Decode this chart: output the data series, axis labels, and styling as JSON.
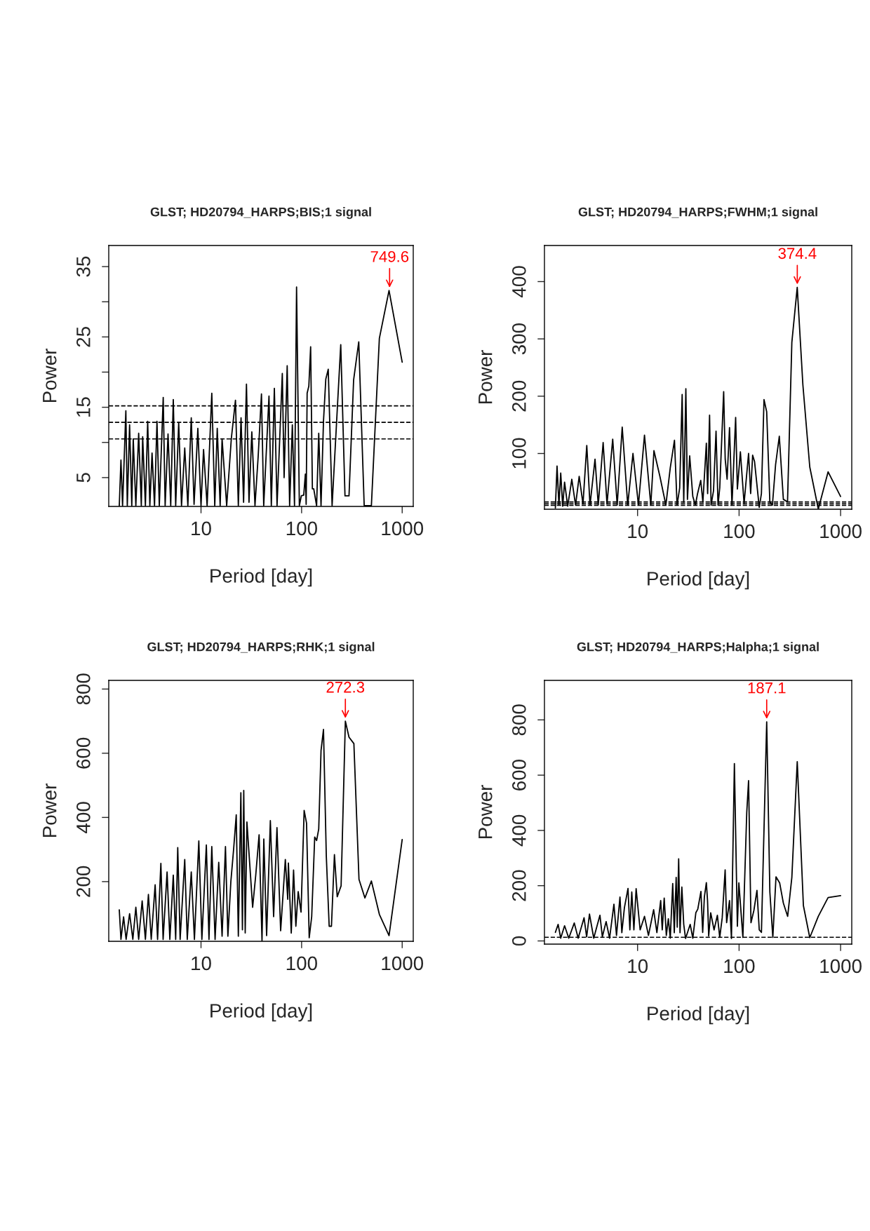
{
  "chart_data": [
    {
      "type": "line",
      "title": "GLST; HD20794_HARPS;BIS;1 signal",
      "xlabel": "Period [day]",
      "ylabel": "Power",
      "log": "x",
      "xlim": [
        1.21,
        1288
      ],
      "xticks": [
        10,
        100,
        1000
      ],
      "ylim": [
        0.9,
        38
      ],
      "yticks": [
        5,
        {
          "value": 10,
          "label": null
        },
        15,
        {
          "value": 20,
          "label": null
        },
        25,
        {
          "value": 30,
          "label": null
        },
        35
      ],
      "x": [
        1.54,
        1.6,
        1.66,
        1.79,
        1.85,
        1.95,
        2.05,
        2.12,
        2.25,
        2.4,
        2.55,
        2.63,
        2.8,
        2.95,
        3.1,
        3.26,
        3.45,
        3.65,
        3.85,
        4.21,
        4.4,
        4.7,
        5.0,
        5.3,
        5.6,
        6.0,
        6.4,
        6.89,
        7.4,
        8.0,
        8.53,
        9.3,
        10.0,
        10.6,
        11.5,
        12.8,
        13.7,
        14.5,
        15.5,
        16.2,
        18,
        20,
        22.0,
        23.5,
        25,
        26.5,
        28.3,
        30,
        32,
        34.4,
        37,
        39.9,
        42,
        47.4,
        50,
        53.6,
        57,
        64.3,
        67,
        71.9,
        76,
        80.9,
        85,
        89.1,
        95,
        99.3,
        105,
        109,
        111,
        113.5,
        118,
        123,
        128,
        132,
        141,
        148,
        156,
        165,
        174,
        184,
        201,
        245,
        270,
        296,
        329,
        370,
        419,
        494,
        593,
        740,
        1000
      ],
      "series": [
        {
          "color": "#000000",
          "values": [
            1.0,
            7.5,
            1.0,
            14.5,
            1.0,
            12.5,
            1.0,
            10.5,
            1.0,
            11.3,
            1.0,
            10.8,
            1.0,
            13.0,
            1.0,
            8.5,
            1.0,
            13.0,
            1.0,
            16.4,
            1.0,
            11.2,
            1.0,
            16.1,
            1.0,
            12.8,
            1.0,
            9.2,
            1.0,
            13.5,
            1.2,
            12.0,
            1.0,
            9.0,
            1.0,
            17.0,
            1.0,
            12.0,
            1.0,
            10.5,
            1.0,
            10.5,
            16.0,
            1.0,
            13.5,
            1.5,
            18.3,
            1.5,
            11.5,
            1.0,
            8.0,
            16.9,
            1.0,
            16.6,
            1.0,
            17.7,
            1.0,
            19.8,
            5.0,
            20.9,
            1.0,
            12.5,
            1.0,
            32.1,
            1.0,
            2.4,
            2.5,
            5.5,
            1.2,
            17.0,
            18.0,
            23.6,
            3.4,
            3.4,
            1.0,
            11.3,
            1.0,
            13.0,
            19.0,
            20.4,
            1.0,
            23.9,
            2.4,
            2.4,
            18.9,
            24.3,
            1.0,
            1.0,
            24.8,
            31.6,
            21.4
          ]
        }
      ],
      "ref_lines": [
        {
          "axis": "y",
          "value": 15.2,
          "color": "#000000",
          "line_style": "dashed"
        },
        {
          "axis": "y",
          "value": 12.85,
          "color": "#000000",
          "line_style": "dashed"
        },
        {
          "axis": "y",
          "value": 10.5,
          "color": "#000000",
          "line_style": "dashed"
        }
      ],
      "annotations": [
        {
          "text": "749.6",
          "x": 749.6,
          "y": 31.6
        }
      ]
    },
    {
      "type": "line",
      "title": "GLST; HD20794_HARPS;FWHM;1 signal",
      "xlabel": "Period [day]",
      "ylabel": "Power",
      "log": "x",
      "xlim": [
        1.21,
        1288
      ],
      "xticks": [
        10,
        100,
        1000
      ],
      "ylim": [
        2.7,
        463
      ],
      "yticks": [
        100,
        200,
        300,
        400
      ],
      "x": [
        1.55,
        1.61,
        1.68,
        1.75,
        1.83,
        1.91,
        2.05,
        2.25,
        2.45,
        2.66,
        2.9,
        3.16,
        3.4,
        3.81,
        4.1,
        4.58,
        5.0,
        5.69,
        6.3,
        7.06,
        8.0,
        9.01,
        10.2,
        11.7,
        13.5,
        14.5,
        16.6,
        19,
        21,
        23.1,
        24.5,
        26,
        27.5,
        28.5,
        29.9,
        31,
        32.6,
        35,
        37.1,
        39,
        41.9,
        44,
        47.6,
        49,
        51.2,
        53,
        56,
        59.3,
        62,
        64.5,
        70.5,
        73,
        76.2,
        80.5,
        85.1,
        92.5,
        96.2,
        103,
        112,
        124,
        130,
        136,
        142,
        158,
        166,
        176,
        187,
        201,
        213,
        229,
        249,
        273,
        300,
        331,
        374,
        425,
        497,
        603,
        753,
        1000
      ],
      "series": [
        {
          "color": "#000000",
          "values": [
            5,
            78,
            10,
            66,
            8,
            50,
            8,
            55,
            10,
            60,
            12,
            114,
            10,
            90,
            10,
            119,
            12,
            125,
            10,
            146,
            10,
            100,
            10,
            132,
            10,
            105,
            60,
            10,
            75,
            123,
            10,
            40,
            203,
            15,
            213,
            20,
            96,
            25,
            10,
            30,
            53,
            15,
            118,
            30,
            167,
            10,
            35,
            139,
            10,
            40,
            208,
            90,
            55,
            145,
            10,
            163,
            38,
            103,
            12.5,
            100,
            30,
            97,
            86,
            6,
            30,
            194,
            173,
            15,
            10,
            81,
            130,
            20,
            15.5,
            294,
            390,
            220,
            76.5,
            3,
            68,
            25
          ]
        }
      ],
      "ref_lines": [
        {
          "axis": "y",
          "value": 15.5,
          "color": "#000000",
          "line_style": "dashed"
        },
        {
          "axis": "y",
          "value": 12.5,
          "color": "#000000",
          "line_style": "dashed"
        },
        {
          "axis": "y",
          "value": 9.5,
          "color": "#000000",
          "line_style": "dashed"
        }
      ],
      "annotations": [
        {
          "text": "374.4",
          "x": 374.4,
          "y": 390
        }
      ]
    },
    {
      "type": "line",
      "title": "GLST; HD20794_HARPS;RHK;1 signal",
      "xlabel": "Period [day]",
      "ylabel": "Power",
      "log": "x",
      "xlim": [
        1.21,
        1288
      ],
      "xticks": [
        10,
        100,
        1000
      ],
      "ylim": [
        14,
        827
      ],
      "yticks": [
        200,
        400,
        600,
        800
      ],
      "x": [
        1.54,
        1.6,
        1.7,
        1.8,
        1.95,
        2.1,
        2.25,
        2.4,
        2.6,
        2.8,
        3.0,
        3.2,
        3.5,
        3.7,
        3.99,
        4.2,
        4.6,
        4.9,
        5.3,
        5.6,
        5.87,
        6.2,
        6.89,
        7.3,
        8.0,
        8.6,
        9.51,
        10.2,
        11.3,
        12.0,
        12.8,
        13.8,
        15,
        16.2,
        17.5,
        18.5,
        19.8,
        21.1,
        22.4,
        23.5,
        24.9,
        25.8,
        26.6,
        27.5,
        28.6,
        29.7,
        32.6,
        35,
        37.8,
        40.4,
        42.1,
        44.9,
        48.9,
        52.7,
        56.9,
        61.9,
        68.9,
        72.8,
        73.9,
        78.9,
        83.2,
        87.7,
        92.5,
        98.7,
        106,
        112,
        119,
        126,
        135,
        141,
        148,
        156,
        165,
        176,
        188,
        198,
        212,
        226,
        247,
        272.3,
        296,
        331,
        372,
        426,
        494,
        593,
        740,
        1000
      ],
      "series": [
        {
          "color": "#000000",
          "values": [
            112,
            20,
            90,
            20,
            100,
            20,
            120,
            20,
            140,
            20,
            160,
            20,
            190,
            20,
            257,
            20,
            230,
            20,
            220,
            20,
            306,
            20,
            269,
            20,
            230,
            20,
            327,
            20,
            314,
            20,
            309,
            20,
            260,
            30,
            309,
            30,
            200,
            301,
            408,
            30,
            477,
            50,
            484,
            40,
            386,
            309,
            120,
            220,
            346,
            15,
            333,
            32,
            390,
            91,
            368,
            47,
            269,
            145,
            258,
            40,
            236,
            61,
            169,
            105,
            422,
            382,
            25,
            91,
            339,
            328,
            364,
            608,
            674,
            280,
            61,
            61,
            284,
            153,
            187,
            700,
            650,
            630,
            207,
            149,
            202,
            98,
            32,
            331
          ]
        }
      ],
      "annotations": [
        {
          "text": "272.3",
          "x": 272.3,
          "y": 700
        }
      ]
    },
    {
      "type": "line",
      "title": "GLST; HD20794_HARPS;Halpha;1 signal",
      "xlabel": "Period [day]",
      "ylabel": "Power",
      "log": "x",
      "xlim": [
        1.21,
        1288
      ],
      "xticks": [
        10,
        100,
        1000
      ],
      "ylim": [
        -11.5,
        943
      ],
      "yticks": [
        0,
        200,
        400,
        600,
        800
      ],
      "x": [
        1.55,
        1.65,
        1.75,
        1.91,
        2.1,
        2.38,
        2.6,
        2.97,
        3.15,
        3.36,
        3.7,
        4.26,
        4.5,
        4.9,
        5.3,
        5.85,
        6.2,
        6.71,
        7.0,
        7.42,
        8.05,
        8.4,
        8.77,
        9.2,
        9.68,
        10.6,
        11.7,
        12.8,
        14.4,
        15.5,
        16.9,
        17.5,
        18.3,
        19.2,
        20.1,
        21,
        22.2,
        23,
        24.0,
        24.6,
        25.4,
        26.2,
        27.3,
        28.5,
        29.7,
        33,
        35,
        37.5,
        39.2,
        42.1,
        43.8,
        45.5,
        47.6,
        48.9,
        50.2,
        52.5,
        56.7,
        61.1,
        64.5,
        68.2,
        72.9,
        75.4,
        80.5,
        84.1,
        89.9,
        96.2,
        99.5,
        109,
        119,
        124,
        131,
        140,
        150,
        158,
        166,
        187.1,
        201,
        215,
        231,
        251,
        273,
        301,
        331,
        374,
        430,
        497,
        603,
        753,
        1000
      ],
      "series": [
        {
          "color": "#000000",
          "values": [
            31,
            60,
            10,
            55,
            10,
            65,
            10,
            84,
            15,
            97,
            10,
            93,
            15,
            70,
            10,
            133,
            20,
            159,
            30,
            120,
            190,
            40,
            177,
            40,
            189,
            40,
            89,
            20,
            113,
            30,
            146,
            40,
            155,
            20,
            80,
            10,
            208,
            30,
            230,
            50,
            297,
            30,
            195,
            60,
            9,
            60,
            10,
            102,
            115,
            179,
            31,
            159,
            211,
            146,
            18,
            102,
            40,
            93,
            13,
            84,
            257,
            66,
            146,
            9,
            642,
            53,
            210,
            13,
            465,
            580,
            66,
            111,
            183,
            40,
            31,
            793,
            177,
            13,
            232,
            210,
            137,
            89,
            230,
            649,
            128,
            12,
            89,
            157,
            164
          ]
        }
      ],
      "ref_lines": [
        {
          "axis": "y",
          "value": 13.3,
          "color": "#000000",
          "line_style": "dashed"
        }
      ],
      "annotations": [
        {
          "text": "187.1",
          "x": 187.1,
          "y": 793
        }
      ]
    }
  ]
}
